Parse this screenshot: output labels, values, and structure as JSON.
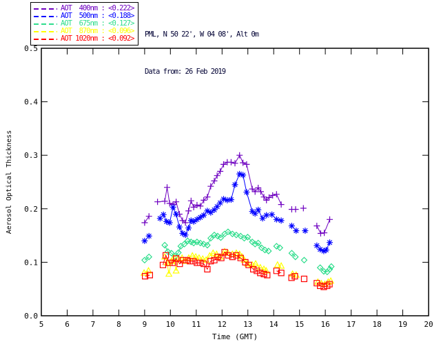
{
  "header": {
    "station_line": "PML, N 50 22', W 04 08', Alt 0m",
    "date_line": "Data from: 26 Feb 2019",
    "text_color": "#000033"
  },
  "chart_data": {
    "type": "scatter",
    "title": "",
    "xlabel": "Time (GMT)",
    "ylabel": "Aerosol Optical Thickness",
    "xlim": [
      5,
      20
    ],
    "ylim": [
      0.0,
      0.5
    ],
    "x_ticks": [
      5,
      6,
      7,
      8,
      9,
      10,
      11,
      12,
      13,
      14,
      15,
      16,
      17,
      18,
      19,
      20
    ],
    "y_ticks": [
      "0.0",
      "0.1",
      "0.2",
      "0.3",
      "0.4",
      "0.5"
    ],
    "grid": false,
    "legend_position": "top-left",
    "line_gap_threshold_hours": 0.29,
    "series": [
      {
        "name": "AOT 400nm",
        "legend_text": "AOT  400nm : <0.222>",
        "mean": 0.222,
        "color": "#6E00C0",
        "marker": "plus",
        "points": [
          [
            9.0,
            0.174
          ],
          [
            9.17,
            0.186
          ],
          [
            9.5,
            0.213
          ],
          [
            9.78,
            0.214
          ],
          [
            9.87,
            0.24
          ],
          [
            9.97,
            0.21
          ],
          [
            10.1,
            0.208
          ],
          [
            10.22,
            0.213
          ],
          [
            10.35,
            0.19
          ],
          [
            10.47,
            0.178
          ],
          [
            10.58,
            0.174
          ],
          [
            10.7,
            0.196
          ],
          [
            10.8,
            0.215
          ],
          [
            10.9,
            0.203
          ],
          [
            11.03,
            0.207
          ],
          [
            11.16,
            0.205
          ],
          [
            11.29,
            0.216
          ],
          [
            11.43,
            0.222
          ],
          [
            11.56,
            0.242
          ],
          [
            11.7,
            0.252
          ],
          [
            11.81,
            0.262
          ],
          [
            11.93,
            0.27
          ],
          [
            12.06,
            0.283
          ],
          [
            12.2,
            0.287
          ],
          [
            12.35,
            0.287
          ],
          [
            12.5,
            0.285
          ],
          [
            12.68,
            0.3
          ],
          [
            12.81,
            0.286
          ],
          [
            12.95,
            0.283
          ],
          [
            13.17,
            0.237
          ],
          [
            13.28,
            0.232
          ],
          [
            13.4,
            0.239
          ],
          [
            13.5,
            0.232
          ],
          [
            13.62,
            0.222
          ],
          [
            13.72,
            0.216
          ],
          [
            13.82,
            0.221
          ],
          [
            13.96,
            0.225
          ],
          [
            14.11,
            0.227
          ],
          [
            14.29,
            0.208
          ],
          [
            14.7,
            0.199
          ],
          [
            14.85,
            0.199
          ],
          [
            15.15,
            0.201
          ],
          [
            15.67,
            0.168
          ],
          [
            15.82,
            0.154
          ],
          [
            15.96,
            0.155
          ],
          [
            16.17,
            0.18
          ]
        ]
      },
      {
        "name": "AOT 500nm",
        "legend_text": "AOT  500nm : <0.188>",
        "mean": 0.188,
        "color": "#0000FF",
        "marker": "asterisk",
        "points": [
          [
            9.0,
            0.14
          ],
          [
            9.17,
            0.149
          ],
          [
            9.6,
            0.182
          ],
          [
            9.73,
            0.189
          ],
          [
            9.85,
            0.176
          ],
          [
            9.97,
            0.174
          ],
          [
            10.1,
            0.203
          ],
          [
            10.22,
            0.19
          ],
          [
            10.35,
            0.166
          ],
          [
            10.47,
            0.154
          ],
          [
            10.58,
            0.151
          ],
          [
            10.7,
            0.164
          ],
          [
            10.8,
            0.178
          ],
          [
            10.9,
            0.176
          ],
          [
            11.03,
            0.18
          ],
          [
            11.16,
            0.184
          ],
          [
            11.29,
            0.188
          ],
          [
            11.43,
            0.196
          ],
          [
            11.56,
            0.193
          ],
          [
            11.7,
            0.198
          ],
          [
            11.81,
            0.204
          ],
          [
            11.93,
            0.211
          ],
          [
            12.06,
            0.218
          ],
          [
            12.2,
            0.216
          ],
          [
            12.35,
            0.217
          ],
          [
            12.5,
            0.245
          ],
          [
            12.68,
            0.265
          ],
          [
            12.81,
            0.263
          ],
          [
            12.95,
            0.231
          ],
          [
            13.17,
            0.195
          ],
          [
            13.28,
            0.191
          ],
          [
            13.4,
            0.198
          ],
          [
            13.57,
            0.182
          ],
          [
            13.72,
            0.188
          ],
          [
            13.93,
            0.189
          ],
          [
            14.11,
            0.18
          ],
          [
            14.29,
            0.178
          ],
          [
            14.7,
            0.168
          ],
          [
            14.87,
            0.159
          ],
          [
            15.22,
            0.159
          ],
          [
            15.67,
            0.131
          ],
          [
            15.8,
            0.124
          ],
          [
            15.94,
            0.121
          ],
          [
            16.03,
            0.123
          ],
          [
            16.17,
            0.137
          ]
        ]
      },
      {
        "name": "AOT 675nm",
        "legend_text": "AOT  675nm : <0.127>",
        "mean": 0.127,
        "color": "#2EDD8C",
        "marker": "diamond",
        "points": [
          [
            9.0,
            0.104
          ],
          [
            9.17,
            0.11
          ],
          [
            9.78,
            0.132
          ],
          [
            9.9,
            0.12
          ],
          [
            10.04,
            0.117
          ],
          [
            10.18,
            0.111
          ],
          [
            10.31,
            0.118
          ],
          [
            10.4,
            0.13
          ],
          [
            10.54,
            0.134
          ],
          [
            10.67,
            0.14
          ],
          [
            10.8,
            0.138
          ],
          [
            10.9,
            0.136
          ],
          [
            11.03,
            0.138
          ],
          [
            11.16,
            0.136
          ],
          [
            11.29,
            0.134
          ],
          [
            11.43,
            0.132
          ],
          [
            11.56,
            0.145
          ],
          [
            11.7,
            0.151
          ],
          [
            11.83,
            0.149
          ],
          [
            11.95,
            0.146
          ],
          [
            12.1,
            0.153
          ],
          [
            12.23,
            0.157
          ],
          [
            12.4,
            0.153
          ],
          [
            12.55,
            0.151
          ],
          [
            12.72,
            0.149
          ],
          [
            12.86,
            0.145
          ],
          [
            12.99,
            0.147
          ],
          [
            13.17,
            0.138
          ],
          [
            13.28,
            0.134
          ],
          [
            13.4,
            0.136
          ],
          [
            13.53,
            0.127
          ],
          [
            13.66,
            0.123
          ],
          [
            13.8,
            0.121
          ],
          [
            14.11,
            0.13
          ],
          [
            14.24,
            0.127
          ],
          [
            14.7,
            0.117
          ],
          [
            14.84,
            0.11
          ],
          [
            15.18,
            0.104
          ],
          [
            15.8,
            0.09
          ],
          [
            15.94,
            0.083
          ],
          [
            16.07,
            0.082
          ],
          [
            16.17,
            0.087
          ],
          [
            16.23,
            0.092
          ]
        ]
      },
      {
        "name": "AOT 870nm",
        "legend_text": "AOT  870nm : <0.096>",
        "mean": 0.096,
        "color": "#FFFF00",
        "marker": "triangle",
        "points": [
          [
            8.98,
            0.08
          ],
          [
            9.15,
            0.084
          ],
          [
            9.78,
            0.11
          ],
          [
            9.87,
            0.099
          ],
          [
            9.94,
            0.078
          ],
          [
            10.04,
            0.102
          ],
          [
            10.13,
            0.108
          ],
          [
            10.22,
            0.084
          ],
          [
            10.31,
            0.106
          ],
          [
            10.45,
            0.108
          ],
          [
            10.58,
            0.102
          ],
          [
            10.71,
            0.108
          ],
          [
            10.85,
            0.112
          ],
          [
            10.98,
            0.11
          ],
          [
            11.11,
            0.108
          ],
          [
            11.25,
            0.106
          ],
          [
            11.38,
            0.104
          ],
          [
            11.52,
            0.112
          ],
          [
            11.65,
            0.117
          ],
          [
            11.79,
            0.115
          ],
          [
            11.93,
            0.11
          ],
          [
            12.1,
            0.12
          ],
          [
            12.23,
            0.117
          ],
          [
            12.4,
            0.115
          ],
          [
            12.55,
            0.117
          ],
          [
            12.68,
            0.115
          ],
          [
            12.77,
            0.11
          ],
          [
            12.86,
            0.104
          ],
          [
            12.99,
            0.097
          ],
          [
            13.17,
            0.095
          ],
          [
            13.3,
            0.097
          ],
          [
            13.48,
            0.09
          ],
          [
            13.62,
            0.087
          ],
          [
            13.71,
            0.084
          ],
          [
            14.15,
            0.095
          ],
          [
            14.29,
            0.093
          ],
          [
            14.73,
            0.078
          ],
          [
            14.87,
            0.076
          ],
          [
            15.71,
            0.063
          ],
          [
            15.85,
            0.06
          ],
          [
            15.98,
            0.059
          ],
          [
            16.11,
            0.063
          ],
          [
            16.21,
            0.065
          ]
        ]
      },
      {
        "name": "AOT 1020nm",
        "legend_text": "AOT 1020nm : <0.092>",
        "mean": 0.092,
        "color": "#FF0000",
        "marker": "square",
        "points": [
          [
            9.02,
            0.074
          ],
          [
            9.2,
            0.076
          ],
          [
            9.71,
            0.095
          ],
          [
            9.82,
            0.113
          ],
          [
            9.96,
            0.099
          ],
          [
            10.09,
            0.099
          ],
          [
            10.22,
            0.107
          ],
          [
            10.36,
            0.097
          ],
          [
            10.49,
            0.104
          ],
          [
            10.63,
            0.104
          ],
          [
            10.76,
            0.102
          ],
          [
            10.89,
            0.102
          ],
          [
            11.03,
            0.099
          ],
          [
            11.16,
            0.099
          ],
          [
            11.29,
            0.097
          ],
          [
            11.43,
            0.087
          ],
          [
            11.56,
            0.102
          ],
          [
            11.7,
            0.104
          ],
          [
            11.83,
            0.11
          ],
          [
            11.97,
            0.108
          ],
          [
            12.1,
            0.119
          ],
          [
            12.24,
            0.113
          ],
          [
            12.4,
            0.11
          ],
          [
            12.55,
            0.113
          ],
          [
            12.72,
            0.108
          ],
          [
            12.9,
            0.1
          ],
          [
            13.03,
            0.095
          ],
          [
            13.21,
            0.087
          ],
          [
            13.35,
            0.084
          ],
          [
            13.48,
            0.08
          ],
          [
            13.62,
            0.078
          ],
          [
            13.75,
            0.076
          ],
          [
            14.11,
            0.084
          ],
          [
            14.29,
            0.08
          ],
          [
            14.69,
            0.071
          ],
          [
            14.82,
            0.074
          ],
          [
            15.18,
            0.069
          ],
          [
            15.67,
            0.061
          ],
          [
            15.8,
            0.056
          ],
          [
            15.94,
            0.054
          ],
          [
            16.07,
            0.056
          ],
          [
            16.16,
            0.059
          ]
        ]
      }
    ]
  }
}
